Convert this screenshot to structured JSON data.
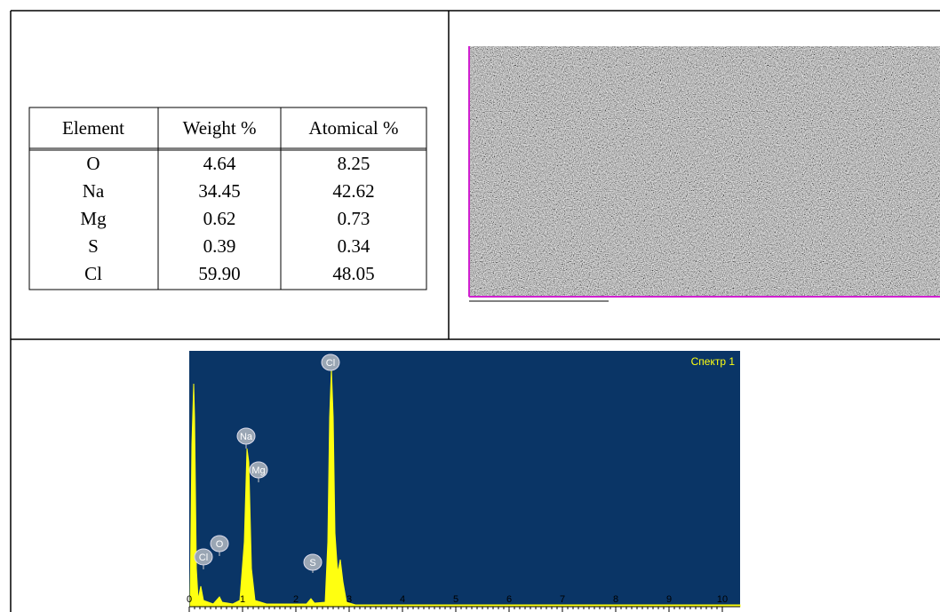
{
  "table": {
    "header": [
      "Element",
      "Weight %",
      "Atomical %"
    ],
    "rows": [
      [
        "O",
        "4.64",
        "8.25"
      ],
      [
        "Na",
        "34.45",
        "42.62"
      ],
      [
        "Mg",
        "0.62",
        "0.73"
      ],
      [
        "S",
        "0.39",
        "0.34"
      ],
      [
        "Cl",
        "59.90",
        "48.05"
      ]
    ]
  },
  "spectrum": {
    "title": "Спектр 1",
    "peak_labels": [
      "Cl",
      "Na",
      "Mg",
      "O",
      "Cl",
      "S"
    ],
    "axis_labels": [
      "0",
      "1",
      "2",
      "3",
      "4",
      "5",
      "6",
      "7",
      "8",
      "9",
      "10"
    ]
  }
}
